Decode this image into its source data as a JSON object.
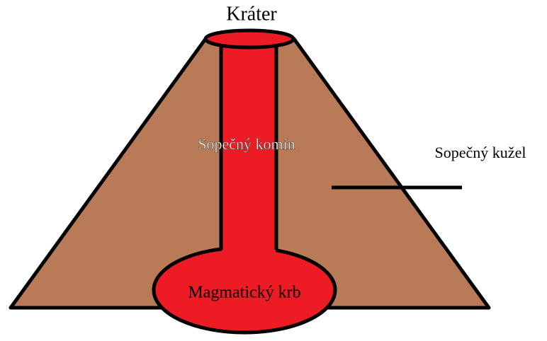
{
  "labels": {
    "crater": "Kráter",
    "conduit": "Sopečný komín",
    "cone": "Sopečný kužel",
    "chamber": "Magmatický krb"
  }
}
